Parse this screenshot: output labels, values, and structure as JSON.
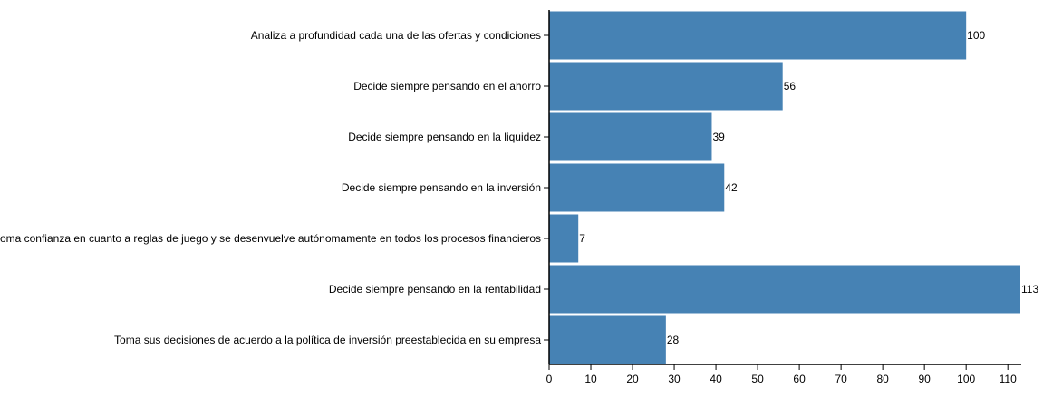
{
  "chart_data": {
    "type": "bar",
    "orientation": "horizontal",
    "categories": [
      "Analiza a profundidad cada una de las ofertas y condiciones",
      "Decide siempre pensando en el ahorro",
      "Decide siempre pensando en la liquidez",
      "Decide siempre pensando en la inversión",
      "Se toma confianza en cuanto a reglas de juego y se desenvuelve autónomamente en todos los procesos financieros",
      "Decide siempre pensando en la rentabilidad",
      "Toma sus decisiones de acuerdo a la política de inversión preestablecida en su empresa"
    ],
    "values": [
      100,
      56,
      39,
      42,
      7,
      113,
      28
    ],
    "xlim": [
      0,
      113
    ],
    "xticks": [
      0,
      10,
      20,
      30,
      40,
      50,
      60,
      70,
      80,
      90,
      100,
      110
    ],
    "grid": false,
    "legend": "none",
    "bar_color": "#4682b4",
    "axis_color": "#000000",
    "title": "",
    "xlabel": "",
    "ylabel": ""
  }
}
